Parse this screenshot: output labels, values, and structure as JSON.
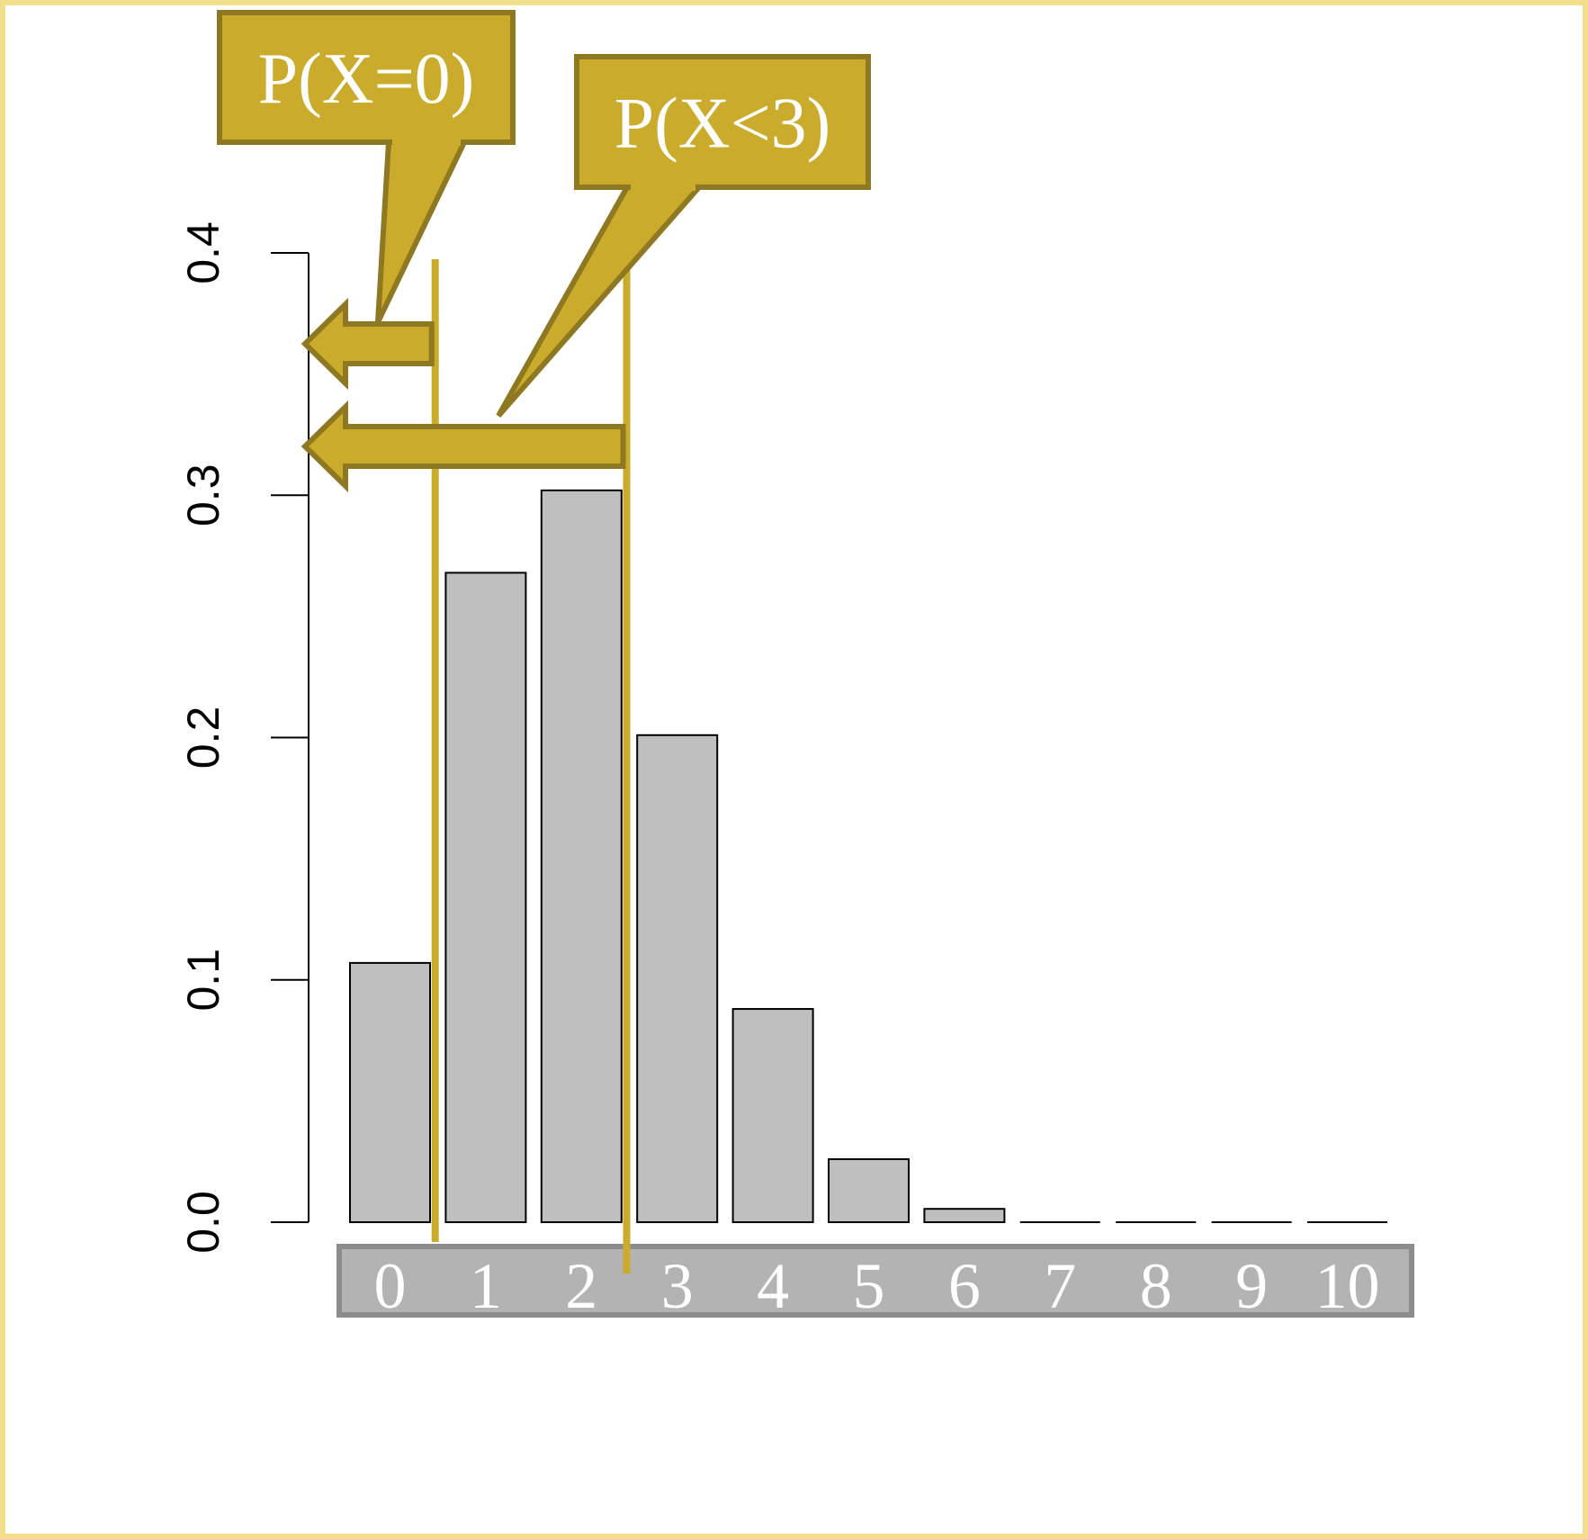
{
  "colors": {
    "frame": "#f1df8c",
    "bar_fill": "#bfbfbf",
    "bar_stroke": "#000000",
    "accent": "#cbab2b",
    "accent_dark": "#8f7822",
    "xlabel_band": "#b3b3b3",
    "xlabel_band_stroke": "#8c8c8c"
  },
  "callouts": [
    {
      "label": "P(X=0)",
      "boundary_x": 0
    },
    {
      "label": "P(X<3)",
      "boundary_x": 2
    }
  ],
  "chart_data": {
    "type": "bar",
    "categories": [
      "0",
      "1",
      "2",
      "3",
      "4",
      "5",
      "6",
      "7",
      "8",
      "9",
      "10"
    ],
    "values": [
      0.107,
      0.268,
      0.302,
      0.201,
      0.088,
      0.026,
      0.0055,
      0.0008,
      0.0001,
      0.0,
      0.0
    ],
    "title": "",
    "xlabel": "",
    "ylabel": "",
    "ylim": [
      0,
      0.4
    ],
    "yticks": [
      "0.0",
      "0.1",
      "0.2",
      "0.3",
      "0.4"
    ],
    "ytick_values": [
      0.0,
      0.1,
      0.2,
      0.3,
      0.4
    ],
    "grid": false
  }
}
